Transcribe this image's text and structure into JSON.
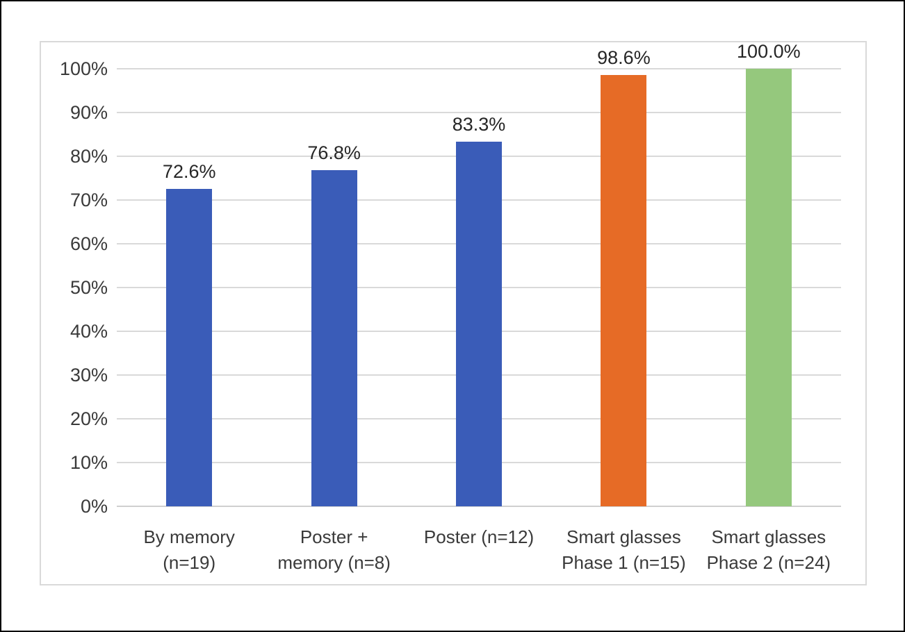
{
  "chart_data": {
    "type": "bar",
    "categories": [
      "By memory (n=19)",
      "Poster + memory (n=8)",
      "Poster (n=12)",
      "Smart glasses Phase 1 (n=15)",
      "Smart glasses Phase 2 (n=24)"
    ],
    "values": [
      72.6,
      76.8,
      83.3,
      98.6,
      100.0
    ],
    "value_labels": [
      "72.6%",
      "76.8%",
      "83.3%",
      "98.6%",
      "100.0%"
    ],
    "bar_colors": [
      "#3A5CB8",
      "#3A5CB8",
      "#3A5CB8",
      "#E66B26",
      "#95C87D"
    ],
    "title": "",
    "xlabel": "",
    "ylabel": "",
    "ylim": [
      0,
      100
    ],
    "ytick_interval": 10,
    "ytick_labels": [
      "0%",
      "10%",
      "20%",
      "30%",
      "40%",
      "50%",
      "60%",
      "70%",
      "80%",
      "90%",
      "100%"
    ],
    "grid": true,
    "legend": false
  },
  "bars": [
    {
      "category": "By memory\n(n=19)",
      "value": 72.6,
      "value_label": "72.6%",
      "color": "#3A5CB8"
    },
    {
      "category": "Poster +\nmemory (n=8)",
      "value": 76.8,
      "value_label": "76.8%",
      "color": "#3A5CB8"
    },
    {
      "category": "Poster (n=12)",
      "value": 83.3,
      "value_label": "83.3%",
      "color": "#3A5CB8"
    },
    {
      "category": "Smart glasses\nPhase 1 (n=15)",
      "value": 98.6,
      "value_label": "98.6%",
      "color": "#E66B26"
    },
    {
      "category": "Smart glasses\nPhase 2 (n=24)",
      "value": 100.0,
      "value_label": "100.0%",
      "color": "#95C87D"
    }
  ],
  "colors": {
    "gridline": "#D9D9D9",
    "axis_line": "#CFCFCF",
    "chart_border": "#D9D9D9",
    "page_border": "#000000",
    "tick_text": "#3A3A3A",
    "value_text": "#262626"
  }
}
